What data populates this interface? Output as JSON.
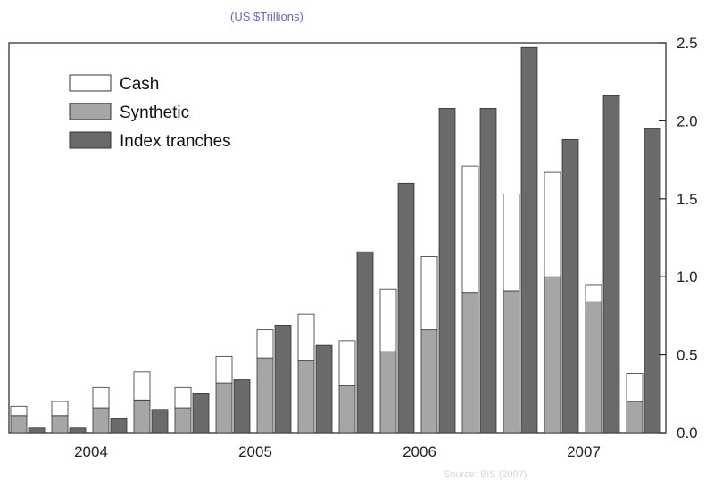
{
  "header": {
    "unit_label": "(US $Trillions)"
  },
  "footer": {
    "source": "Source: BIS (2007)"
  },
  "chart_data": {
    "type": "bar",
    "stacked_series": [
      "Synthetic",
      "Cash"
    ],
    "ylabel": "(US $Trillions)",
    "ylim": [
      0,
      2.5
    ],
    "y_ticks": [
      "0.0",
      "0.5",
      "1.0",
      "1.5",
      "2.0",
      "2.5"
    ],
    "x_tick_labels": [
      "2004",
      "2005",
      "2006",
      "2007"
    ],
    "grid": false,
    "legend_position": "top-left",
    "legend": [
      {
        "name": "Cash",
        "color": "#ffffff"
      },
      {
        "name": "Synthetic",
        "color": "#a6a6a6"
      },
      {
        "name": "Index tranches",
        "color": "#6a6a6a"
      }
    ],
    "periods": [
      {
        "synthetic": 0.11,
        "cash": 0.06,
        "index_tranches": 0.03
      },
      {
        "synthetic": 0.11,
        "cash": 0.09,
        "index_tranches": 0.03
      },
      {
        "synthetic": 0.16,
        "cash": 0.13,
        "index_tranches": 0.09
      },
      {
        "synthetic": 0.21,
        "cash": 0.18,
        "index_tranches": 0.15
      },
      {
        "synthetic": 0.16,
        "cash": 0.13,
        "index_tranches": 0.25
      },
      {
        "synthetic": 0.32,
        "cash": 0.17,
        "index_tranches": 0.34
      },
      {
        "synthetic": 0.48,
        "cash": 0.18,
        "index_tranches": 0.69
      },
      {
        "synthetic": 0.46,
        "cash": 0.3,
        "index_tranches": 0.56
      },
      {
        "synthetic": 0.3,
        "cash": 0.29,
        "index_tranches": 1.16
      },
      {
        "synthetic": 0.52,
        "cash": 0.4,
        "index_tranches": 1.6
      },
      {
        "synthetic": 0.66,
        "cash": 0.47,
        "index_tranches": 2.08
      },
      {
        "synthetic": 0.9,
        "cash": 0.81,
        "index_tranches": 2.08
      },
      {
        "synthetic": 0.91,
        "cash": 0.62,
        "index_tranches": 2.47
      },
      {
        "synthetic": 1.0,
        "cash": 0.67,
        "index_tranches": 1.88
      },
      {
        "synthetic": 0.84,
        "cash": 0.11,
        "index_tranches": 2.16
      },
      {
        "synthetic": 0.2,
        "cash": 0.18,
        "index_tranches": 1.95
      }
    ],
    "colors": {
      "cash": "#ffffff",
      "synthetic": "#a6a6a6",
      "index_tranches": "#6a6a6a",
      "outline": "#333333"
    }
  }
}
